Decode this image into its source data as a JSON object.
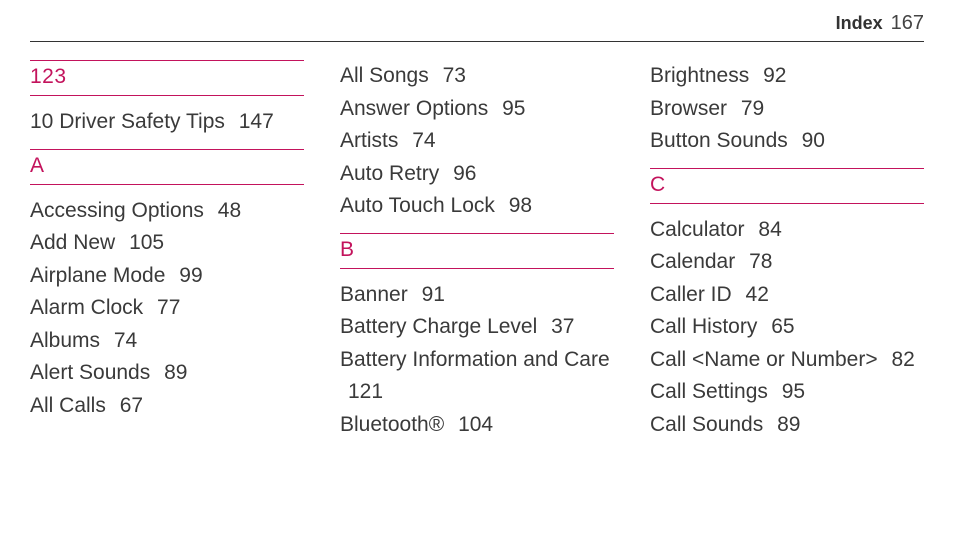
{
  "header": {
    "label": "Index",
    "page": "167"
  },
  "accent_color": "#c3135c",
  "text_color": "#3a3a3a",
  "columns": [
    [
      {
        "type": "heading",
        "text": "123"
      },
      {
        "type": "entry",
        "title": "10 Driver Safety Tips",
        "page": "147"
      },
      {
        "type": "heading",
        "text": "A"
      },
      {
        "type": "entry",
        "title": "Accessing Options",
        "page": "48"
      },
      {
        "type": "entry",
        "title": "Add New",
        "page": "105"
      },
      {
        "type": "entry",
        "title": "Airplane Mode",
        "page": "99"
      },
      {
        "type": "entry",
        "title": "Alarm Clock",
        "page": "77"
      },
      {
        "type": "entry",
        "title": "Albums",
        "page": "74"
      },
      {
        "type": "entry",
        "title": "Alert Sounds",
        "page": "89"
      },
      {
        "type": "entry",
        "title": "All Calls",
        "page": "67"
      }
    ],
    [
      {
        "type": "entry",
        "title": "All Songs",
        "page": "73"
      },
      {
        "type": "entry",
        "title": "Answer Options",
        "page": "95"
      },
      {
        "type": "entry",
        "title": "Artists",
        "page": "74"
      },
      {
        "type": "entry",
        "title": "Auto Retry",
        "page": "96"
      },
      {
        "type": "entry",
        "title": "Auto Touch Lock",
        "page": "98"
      },
      {
        "type": "heading",
        "text": "B"
      },
      {
        "type": "entry",
        "title": "Banner",
        "page": "91"
      },
      {
        "type": "entry",
        "title": "Battery Charge Level",
        "page": "37"
      },
      {
        "type": "entry",
        "title": "Battery Information and Care",
        "page": "121"
      },
      {
        "type": "entry",
        "title": "Bluetooth®",
        "page": "104"
      }
    ],
    [
      {
        "type": "entry",
        "title": "Brightness",
        "page": "92"
      },
      {
        "type": "entry",
        "title": "Browser",
        "page": "79"
      },
      {
        "type": "entry",
        "title": "Button Sounds",
        "page": "90"
      },
      {
        "type": "heading",
        "text": "C"
      },
      {
        "type": "entry",
        "title": "Calculator",
        "page": "84"
      },
      {
        "type": "entry",
        "title": "Calendar",
        "page": "78"
      },
      {
        "type": "entry",
        "title": "Caller ID",
        "page": "42"
      },
      {
        "type": "entry",
        "title": "Call History",
        "page": "65"
      },
      {
        "type": "entry",
        "title": "Call <Name or Number>",
        "page": "82"
      },
      {
        "type": "entry",
        "title": "Call Settings",
        "page": "95"
      },
      {
        "type": "entry",
        "title": "Call Sounds",
        "page": "89"
      }
    ]
  ]
}
